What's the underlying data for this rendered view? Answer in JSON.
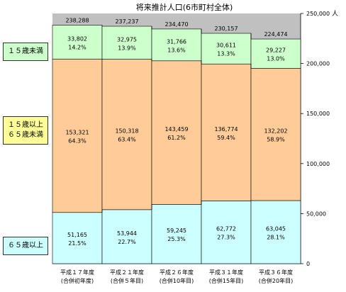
{
  "chart_data": {
    "type": "bar",
    "stacked": true,
    "title": "将来推計人口(6市町村全体)",
    "y_unit": "人",
    "ylim": [
      0,
      250000
    ],
    "yticks": [
      "0",
      "50,000",
      "100,000",
      "150,000",
      "200,000",
      "250,000"
    ],
    "y_axis_side": "right",
    "grid": true,
    "categories": [
      [
        "平成１７年度",
        "(合併初年度)"
      ],
      [
        "平成２１年度",
        "(合併５年目)"
      ],
      [
        "平成２６年度",
        "(合併10年目)"
      ],
      [
        "平成３１年度",
        "(合併15年目)"
      ],
      [
        "平成３６年度",
        "(合併20年目)"
      ]
    ],
    "totals": [
      "238,288",
      "237,237",
      "234,470",
      "230,157",
      "224,474"
    ],
    "series": [
      {
        "name": "６５歳以上",
        "color": "#ccffff",
        "values": [
          51165,
          53944,
          59245,
          62772,
          63045
        ],
        "labels": [
          "51,165",
          "53,944",
          "59,245",
          "62,772",
          "63,045"
        ],
        "percents": [
          "21.5%",
          "22.7%",
          "25.3%",
          "27.3%",
          "28.1%"
        ]
      },
      {
        "name": "１５歳以上\n６５歳未満",
        "color": "#ffcc99",
        "values": [
          153321,
          150318,
          143459,
          136774,
          132202
        ],
        "labels": [
          "153,321",
          "150,318",
          "143,459",
          "136,774",
          "132,202"
        ],
        "percents": [
          "64.3%",
          "63.4%",
          "61.2%",
          "59.4%",
          "58.9%"
        ]
      },
      {
        "name": "１５歳未満",
        "color": "#ccffcc",
        "values": [
          33802,
          32975,
          31766,
          30611,
          29227
        ],
        "labels": [
          "33,802",
          "32,975",
          "31,766",
          "30,611",
          "29,227"
        ],
        "percents": [
          "14.2%",
          "13.9%",
          "13.6%",
          "13.3%",
          "13.0%"
        ]
      }
    ],
    "legend_border_colors": [
      "#ccffff",
      "#ffff99",
      "#ccffcc"
    ],
    "plot_bg": "#c0c0c0"
  }
}
